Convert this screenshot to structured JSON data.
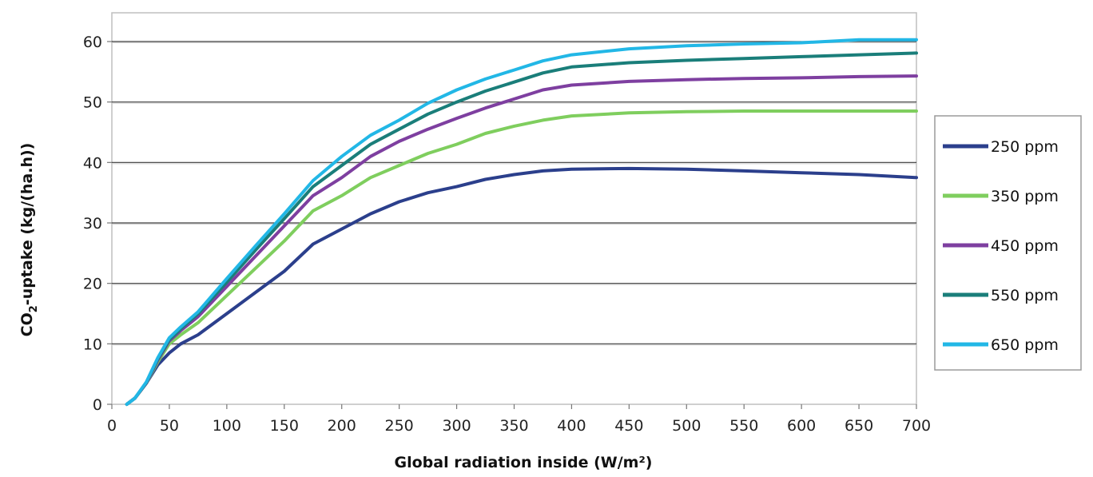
{
  "chart_data": {
    "type": "line",
    "xlabel": "Global radiation inside (W/m²)",
    "ylabel_main": "CO",
    "ylabel_sub": "2",
    "ylabel_rest": "-uptake (kg/(ha.h))",
    "xlim": [
      0,
      700
    ],
    "ylim": [
      0,
      65
    ],
    "x_ticks": [
      0,
      50,
      100,
      150,
      200,
      250,
      300,
      350,
      400,
      450,
      500,
      550,
      600,
      650,
      700
    ],
    "y_ticks": [
      0,
      10,
      20,
      30,
      40,
      50,
      60
    ],
    "grid": "horizontal",
    "legend_position": "right",
    "series": [
      {
        "name": "250 ppm",
        "color": "#2b3f8c",
        "points": [
          [
            13,
            0
          ],
          [
            20,
            1
          ],
          [
            30,
            3.5
          ],
          [
            40,
            6.5
          ],
          [
            50,
            8.5
          ],
          [
            60,
            10
          ],
          [
            75,
            11.5
          ],
          [
            100,
            15
          ],
          [
            125,
            18.5
          ],
          [
            150,
            22
          ],
          [
            175,
            26.5
          ],
          [
            200,
            29
          ],
          [
            225,
            31.5
          ],
          [
            250,
            33.5
          ],
          [
            275,
            35
          ],
          [
            300,
            36
          ],
          [
            325,
            37.2
          ],
          [
            350,
            38
          ],
          [
            375,
            38.6
          ],
          [
            400,
            38.9
          ],
          [
            450,
            39
          ],
          [
            500,
            38.9
          ],
          [
            550,
            38.6
          ],
          [
            600,
            38.3
          ],
          [
            650,
            38
          ],
          [
            700,
            37.5
          ]
        ]
      },
      {
        "name": "350 ppm",
        "color": "#7fce5e",
        "points": [
          [
            13,
            0
          ],
          [
            20,
            1
          ],
          [
            30,
            3.5
          ],
          [
            40,
            7
          ],
          [
            50,
            10
          ],
          [
            60,
            11.5
          ],
          [
            75,
            13.5
          ],
          [
            100,
            18
          ],
          [
            125,
            22.5
          ],
          [
            150,
            27
          ],
          [
            175,
            32
          ],
          [
            200,
            34.5
          ],
          [
            225,
            37.5
          ],
          [
            250,
            39.5
          ],
          [
            275,
            41.5
          ],
          [
            300,
            43
          ],
          [
            325,
            44.8
          ],
          [
            350,
            46
          ],
          [
            375,
            47
          ],
          [
            400,
            47.7
          ],
          [
            450,
            48.2
          ],
          [
            500,
            48.4
          ],
          [
            550,
            48.5
          ],
          [
            600,
            48.5
          ],
          [
            650,
            48.5
          ],
          [
            700,
            48.5
          ]
        ]
      },
      {
        "name": "450 ppm",
        "color": "#7e3fa0",
        "points": [
          [
            13,
            0
          ],
          [
            20,
            1
          ],
          [
            30,
            3.5
          ],
          [
            40,
            7.3
          ],
          [
            50,
            10.5
          ],
          [
            60,
            12.2
          ],
          [
            75,
            14.5
          ],
          [
            100,
            19.5
          ],
          [
            125,
            24.5
          ],
          [
            150,
            29.5
          ],
          [
            175,
            34.5
          ],
          [
            200,
            37.5
          ],
          [
            225,
            41
          ],
          [
            250,
            43.5
          ],
          [
            275,
            45.5
          ],
          [
            300,
            47.3
          ],
          [
            325,
            49
          ],
          [
            350,
            50.5
          ],
          [
            375,
            52
          ],
          [
            400,
            52.8
          ],
          [
            450,
            53.4
          ],
          [
            500,
            53.7
          ],
          [
            550,
            53.9
          ],
          [
            600,
            54
          ],
          [
            650,
            54.2
          ],
          [
            700,
            54.3
          ]
        ]
      },
      {
        "name": "550 ppm",
        "color": "#1a7e7a",
        "points": [
          [
            13,
            0
          ],
          [
            20,
            1
          ],
          [
            30,
            3.6
          ],
          [
            40,
            7.5
          ],
          [
            50,
            10.7
          ],
          [
            60,
            12.5
          ],
          [
            75,
            15
          ],
          [
            100,
            20.2
          ],
          [
            125,
            25.5
          ],
          [
            150,
            30.7
          ],
          [
            175,
            36
          ],
          [
            200,
            39.5
          ],
          [
            225,
            43
          ],
          [
            250,
            45.5
          ],
          [
            275,
            48
          ],
          [
            300,
            50
          ],
          [
            325,
            51.8
          ],
          [
            350,
            53.3
          ],
          [
            375,
            54.8
          ],
          [
            400,
            55.8
          ],
          [
            450,
            56.5
          ],
          [
            500,
            56.9
          ],
          [
            550,
            57.2
          ],
          [
            600,
            57.5
          ],
          [
            650,
            57.8
          ],
          [
            700,
            58.1
          ]
        ]
      },
      {
        "name": "650 ppm",
        "color": "#22b7e6",
        "points": [
          [
            13,
            0
          ],
          [
            20,
            1
          ],
          [
            30,
            3.7
          ],
          [
            40,
            7.7
          ],
          [
            50,
            11
          ],
          [
            60,
            12.8
          ],
          [
            75,
            15.3
          ],
          [
            100,
            20.8
          ],
          [
            125,
            26.2
          ],
          [
            150,
            31.5
          ],
          [
            175,
            37
          ],
          [
            200,
            41
          ],
          [
            225,
            44.5
          ],
          [
            250,
            47
          ],
          [
            275,
            49.8
          ],
          [
            300,
            52
          ],
          [
            325,
            53.8
          ],
          [
            350,
            55.3
          ],
          [
            375,
            56.8
          ],
          [
            400,
            57.8
          ],
          [
            450,
            58.8
          ],
          [
            500,
            59.3
          ],
          [
            550,
            59.6
          ],
          [
            600,
            59.8
          ],
          [
            650,
            60.3
          ],
          [
            700,
            60.3
          ]
        ]
      }
    ]
  }
}
